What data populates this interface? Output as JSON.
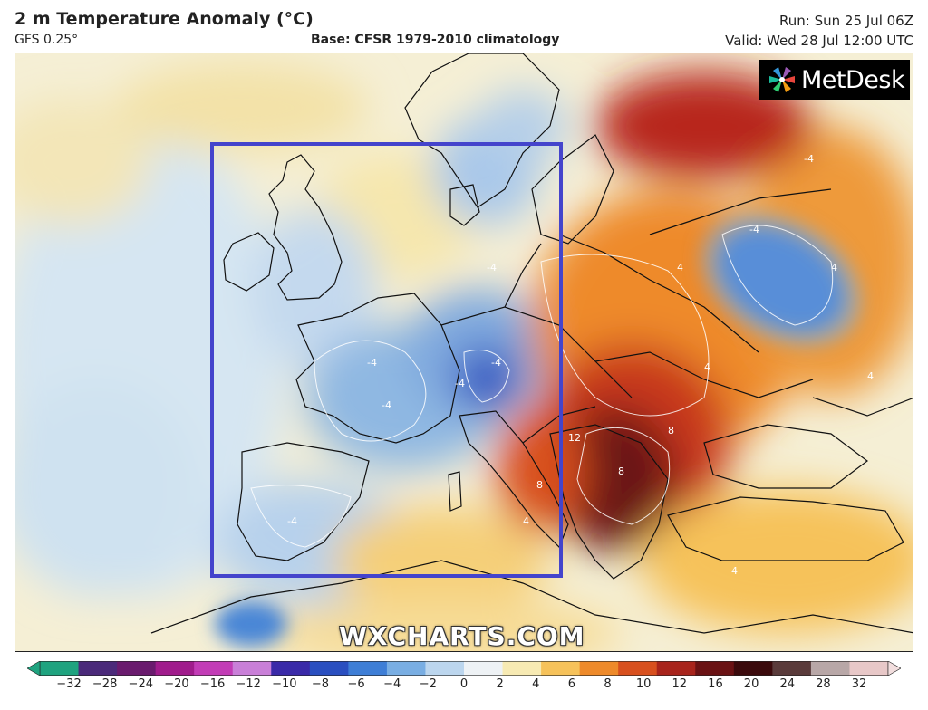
{
  "header": {
    "title": "2 m Temperature Anomaly (°C)",
    "model": "GFS 0.25°",
    "base": "Base: CFSR 1979-2010 climatology",
    "run": "Run: Sun 25 Jul 06Z",
    "valid": "Valid: Wed 28 Jul 12:00 UTC"
  },
  "logo": {
    "text": "MetDesk"
  },
  "watermark": {
    "text": "WXCHARTS.COM"
  },
  "highlight_box": {
    "color": "#4444cc"
  },
  "contour_labels": [
    "-4",
    "-4",
    "-4",
    "-4",
    "-4",
    "-4",
    "-4",
    "4",
    "4",
    "4",
    "4",
    "8",
    "8",
    "8",
    "12",
    "4",
    "-4",
    "4"
  ],
  "colorbar": {
    "ticks": [
      "−32",
      "−28",
      "−24",
      "−20",
      "−16",
      "−12",
      "−10",
      "−8",
      "−6",
      "−4",
      "−2",
      "0",
      "2",
      "4",
      "6",
      "8",
      "10",
      "12",
      "16",
      "20",
      "24",
      "28",
      "32"
    ],
    "colors": [
      "#1fa37f",
      "#4b2a7a",
      "#6a1b6e",
      "#a01c8c",
      "#c23cb6",
      "#c97fd8",
      "#3a2aa8",
      "#2a4fc0",
      "#3e7ed6",
      "#79aee3",
      "#bcd6ee",
      "#eef2f5",
      "#f7eab3",
      "#f6c25a",
      "#ee8a2a",
      "#d8501e",
      "#a8241c",
      "#6a1214",
      "#3b0a0c",
      "#5a3b3b",
      "#b8a7a7",
      "#e8c8c8"
    ]
  }
}
